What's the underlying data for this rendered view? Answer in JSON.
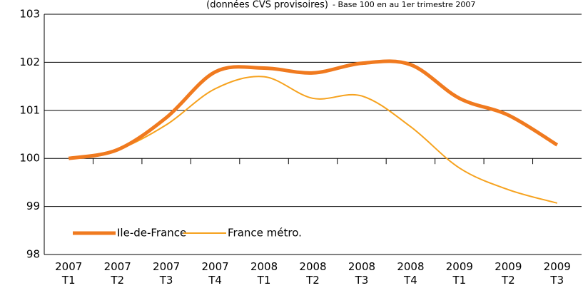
{
  "chart_data": {
    "type": "line",
    "title": "(données CVS provisoires)",
    "subtitle": "- Base 100 en au 1er trimestre 2007",
    "categories": [
      "2007 T1",
      "2007 T2",
      "2007 T3",
      "2007 T4",
      "2008 T1",
      "2008 T2",
      "2008 T3",
      "2008 T4",
      "2009 T1",
      "2009 T2",
      "2009 T3"
    ],
    "series": [
      {
        "name": "Ile-de-France",
        "color": "#f07a1f",
        "values": [
          100.0,
          100.18,
          100.85,
          101.8,
          101.88,
          101.78,
          101.98,
          101.95,
          101.25,
          100.9,
          100.28
        ]
      },
      {
        "name": "France métro.",
        "color": "#f6a21e",
        "values": [
          100.0,
          100.18,
          100.7,
          101.45,
          101.7,
          101.25,
          101.3,
          100.66,
          99.8,
          99.35,
          99.07
        ]
      }
    ],
    "ylim": [
      98,
      103
    ],
    "yticks": [
      98,
      99,
      100,
      101,
      102,
      103
    ],
    "grid": true,
    "legend": "lower left"
  }
}
